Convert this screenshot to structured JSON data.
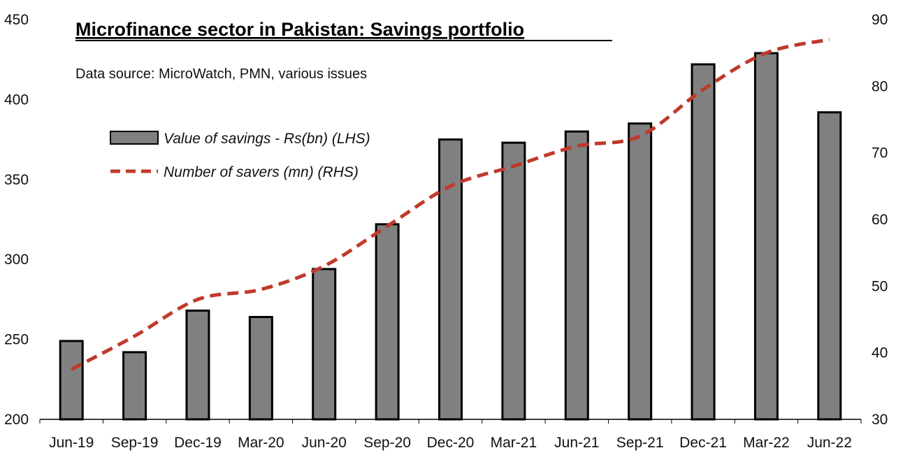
{
  "chart_data": {
    "type": "bar",
    "title": "Microfinance sector in Pakistan: Savings portfolio",
    "subtitle": "Data source: MicroWatch, PMN, various issues",
    "categories": [
      "Jun-19",
      "Sep-19",
      "Dec-19",
      "Mar-20",
      "Jun-20",
      "Sep-20",
      "Dec-20",
      "Mar-21",
      "Jun-21",
      "Sep-21",
      "Dec-21",
      "Mar-22",
      "Jun-22"
    ],
    "series": [
      {
        "name": "Value of savings - Rs(bn) (LHS)",
        "type": "bar",
        "axis": "left",
        "color": "#808080",
        "values": [
          249,
          242,
          268,
          264,
          294,
          322,
          375,
          373,
          380,
          385,
          422,
          429,
          392
        ]
      },
      {
        "name": "Number of savers (mn) (RHS)",
        "type": "line",
        "axis": "right",
        "color": "#c0392b",
        "style": "dashed",
        "values": [
          37.5,
          42.5,
          48.0,
          49.5,
          53.0,
          59.0,
          65.0,
          68.0,
          71.0,
          72.5,
          79.5,
          85.0,
          87.0
        ]
      }
    ],
    "y_left": {
      "ticks": [
        200,
        250,
        300,
        350,
        400,
        450
      ],
      "ylim": [
        200,
        450
      ]
    },
    "y_right": {
      "ticks": [
        30,
        40,
        50,
        60,
        70,
        80,
        90
      ],
      "ylim": [
        30,
        90
      ]
    },
    "legend_position": "top-left",
    "grid": false
  }
}
